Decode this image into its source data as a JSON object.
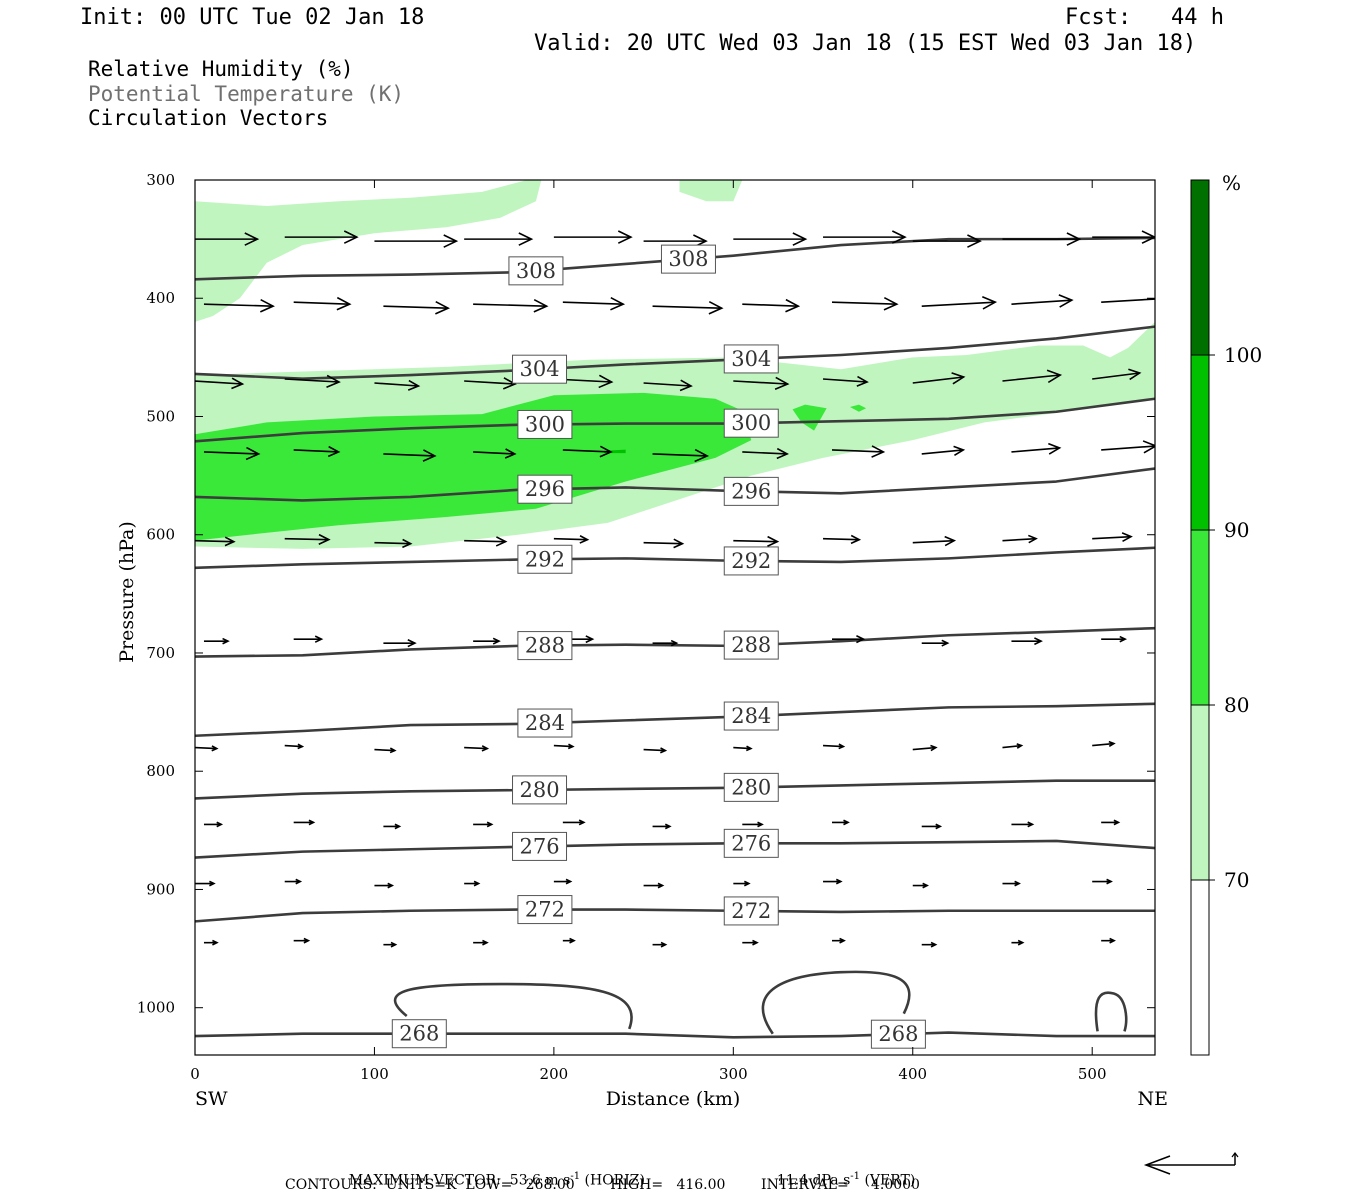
{
  "header": {
    "init": "Init: 00 UTC Tue 02 Jan 18",
    "fcst": "Fcst:   44 h",
    "valid": "Valid: 20 UTC Wed 03 Jan 18 (15 EST Wed 03 Jan 18)"
  },
  "legend": {
    "line1": "Relative Humidity (%)",
    "line2": "Potential Temperature (K)",
    "line3": "Circulation Vectors"
  },
  "footer": {
    "max_vector": "MAXIMUM VECTOR:  53.6 m s",
    "horiz": "(HORIZ)",
    "vert_val": "11.4 dPa s",
    "vert": "(VERT)",
    "contours": "CONTOURS:  UNITS=K  LOW=   268.00        HIGH=   416.00        INTERVAL=     4.0000"
  },
  "chart_data": {
    "type": "cross-section",
    "xlabel": "Distance (km)",
    "ylabel": "Pressure (hPa)",
    "xlim": [
      0,
      535
    ],
    "ylim": [
      300,
      1040
    ],
    "x_ticks": [
      "0",
      "100",
      "200",
      "300",
      "400",
      "500"
    ],
    "y_ticks": [
      "300",
      "400",
      "500",
      "600",
      "700",
      "800",
      "900",
      "1000"
    ],
    "x_end_labels": {
      "left": "SW",
      "right": "NE"
    },
    "colorbar": {
      "unit": "%",
      "levels": [
        "70",
        "80",
        "90",
        "100"
      ],
      "colors": [
        "#ffffff",
        "#c0f5c0",
        "#3ae83a",
        "#00c000",
        "#007000"
      ]
    },
    "theta_contours": [
      {
        "label": "308",
        "p": [
          384,
          381,
          380,
          378,
          371,
          364,
          355,
          350,
          350,
          349
        ],
        "labels_at": [
          190,
          275
        ]
      },
      {
        "label": "304",
        "p": [
          464,
          468,
          465,
          461,
          456,
          452,
          448,
          442,
          434,
          424
        ],
        "labels_at": [
          192,
          310
        ]
      },
      {
        "label": "300",
        "p": [
          521,
          514,
          510,
          507,
          506,
          506,
          504,
          502,
          496,
          485
        ],
        "labels_at": [
          195,
          310
        ]
      },
      {
        "label": "296",
        "p": [
          568,
          571,
          568,
          562,
          560,
          563,
          565,
          560,
          555,
          544
        ],
        "labels_at": [
          195,
          310
        ]
      },
      {
        "label": "292",
        "p": [
          628,
          625,
          623,
          621,
          620,
          622,
          623,
          620,
          615,
          611
        ],
        "labels_at": [
          195,
          310
        ]
      },
      {
        "label": "288",
        "p": [
          703,
          702,
          697,
          694,
          693,
          694,
          690,
          685,
          682,
          679
        ],
        "labels_at": [
          195,
          310
        ]
      },
      {
        "label": "284",
        "p": [
          770,
          766,
          761,
          760,
          757,
          754,
          750,
          746,
          745,
          743
        ],
        "labels_at": [
          195,
          310
        ]
      },
      {
        "label": "280",
        "p": [
          823,
          819,
          817,
          816,
          815,
          814,
          812,
          810,
          808,
          808
        ],
        "labels_at": [
          192,
          310
        ]
      },
      {
        "label": "276",
        "p": [
          873,
          868,
          866,
          864,
          862,
          861,
          861,
          860,
          859,
          865
        ],
        "labels_at": [
          192,
          310
        ]
      },
      {
        "label": "272",
        "p": [
          927,
          920,
          918,
          917,
          917,
          918,
          919,
          918,
          918,
          918
        ],
        "labels_at": [
          195,
          310
        ]
      },
      {
        "label": "268",
        "p": [
          1024,
          1022,
          1022,
          1022,
          1022,
          1025,
          1024,
          1021,
          1024,
          1024
        ],
        "labels_at": [
          125,
          392
        ]
      }
    ],
    "rh_regions": [
      {
        "level": "70-80",
        "bounds": "upper band 300-420 hPa"
      },
      {
        "level": "70-80",
        "bounds": "mid band 450-620 hPa"
      },
      {
        "level": "80-90",
        "bounds": "core 500-580 hPa, 0-300 km"
      }
    ],
    "vector_rows_hpa": [
      350,
      405,
      470,
      530,
      605,
      690,
      780,
      845,
      895,
      945
    ]
  }
}
